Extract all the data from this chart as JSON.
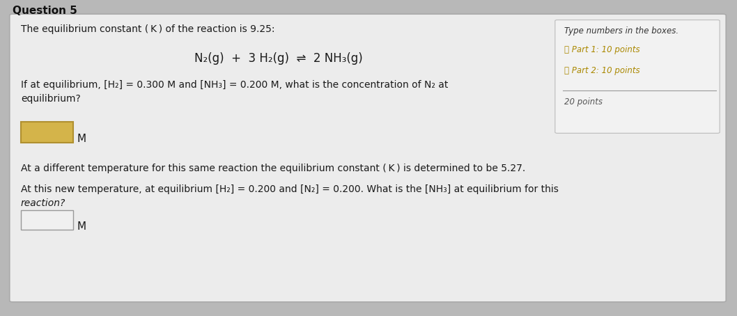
{
  "title": "Question 5",
  "bg_color": "#b8b8b8",
  "card_facecolor": "#ececec",
  "card_edgecolor": "#aaaaaa",
  "sidebar_facecolor": "#f2f2f2",
  "sidebar_edgecolor": "#bbbbbb",
  "text_color": "#1a1a1a",
  "sidebar_text_color": "#444444",
  "input1_facecolor": "#d4b44a",
  "input1_edgecolor": "#b09030",
  "input2_facecolor": "#f0f0f0",
  "input2_edgecolor": "#999999",
  "line1": "The equilibrium constant ( K ) of the reaction is 9.25:",
  "reaction_left": "N",
  "reaction": "N₂(g)  +  3 H₂(g)  ⇌  2 NH₃(g)",
  "q1_line1": "If at equilibrium, [H₂] = 0.300 M and [NH₃] = 0.200 M, what is the concentration of N₂ at",
  "q1_line2": "equilibrium?",
  "q2_line1": "At a different temperature for this same reaction the equilibrium constant ( K ) is determined to be 5.27.",
  "q3_line1": "At this new temperature, at equilibrium [H₂] = 0.200 and [N₂] = 0.200. What is the [NH₃] at equilibrium for this",
  "q3_line2": "reaction?",
  "sb_line1": "Type numbers in the boxes.",
  "sb_line2": "➿ Part 1: 10 points",
  "sb_line3": "➿ Part 2: 10 points",
  "sb_line4": "20 points",
  "M_label": "M"
}
